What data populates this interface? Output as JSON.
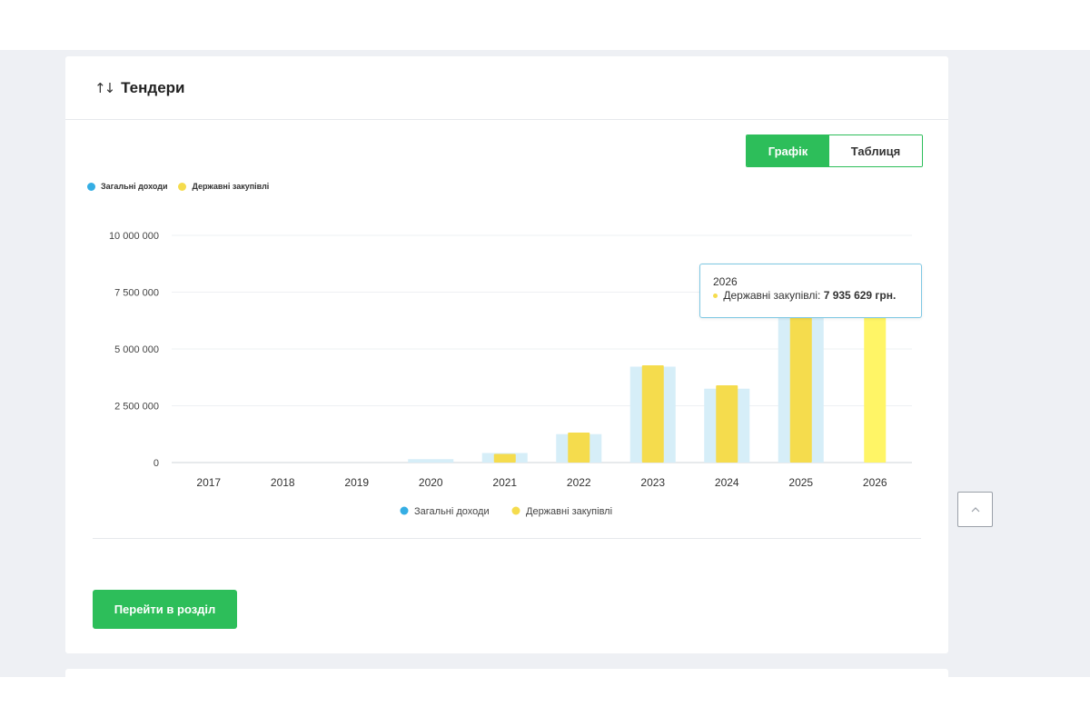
{
  "card": {
    "title": "Тендери",
    "sort_icon": "↑↓",
    "toggle": {
      "chart_label": "Графік",
      "table_label": "Таблиця"
    },
    "legend_top": [
      {
        "label": "Загальні доходи",
        "color": "#35aee4"
      },
      {
        "label": "Державні закупівлі",
        "color": "#f5dc4d"
      }
    ],
    "go_button_label": "Перейти в розділ"
  },
  "tooltip": {
    "year": "2026",
    "series_label": "Державні закупівлі:",
    "value": "7 935 629 грн."
  },
  "colors": {
    "accent": "#2dbe5a",
    "income_bar": "#d6eef8",
    "income_dot": "#35aee4",
    "procurement_bar": "#f5dc4d",
    "procurement_hover": "#fff566"
  },
  "icons": {
    "scroll_top": "chevron-up-icon"
  },
  "chart_data": {
    "type": "bar",
    "categories": [
      "2017",
      "2018",
      "2019",
      "2020",
      "2021",
      "2022",
      "2023",
      "2024",
      "2025",
      "2026"
    ],
    "series": [
      {
        "name": "Загальні доходи",
        "values": [
          0,
          0,
          0,
          150000,
          420000,
          1250000,
          4220000,
          3250000,
          7400000,
          0
        ]
      },
      {
        "name": "Державні закупівлі",
        "values": [
          0,
          0,
          0,
          0,
          380000,
          1320000,
          4280000,
          3400000,
          7600000,
          7935629
        ]
      }
    ],
    "yticks": [
      "10 000 000",
      "7 500 000",
      "5 000 000",
      "2 500 000",
      "0"
    ],
    "ylim": [
      0,
      10000000
    ],
    "grid": true,
    "legend_position": "bottom"
  }
}
